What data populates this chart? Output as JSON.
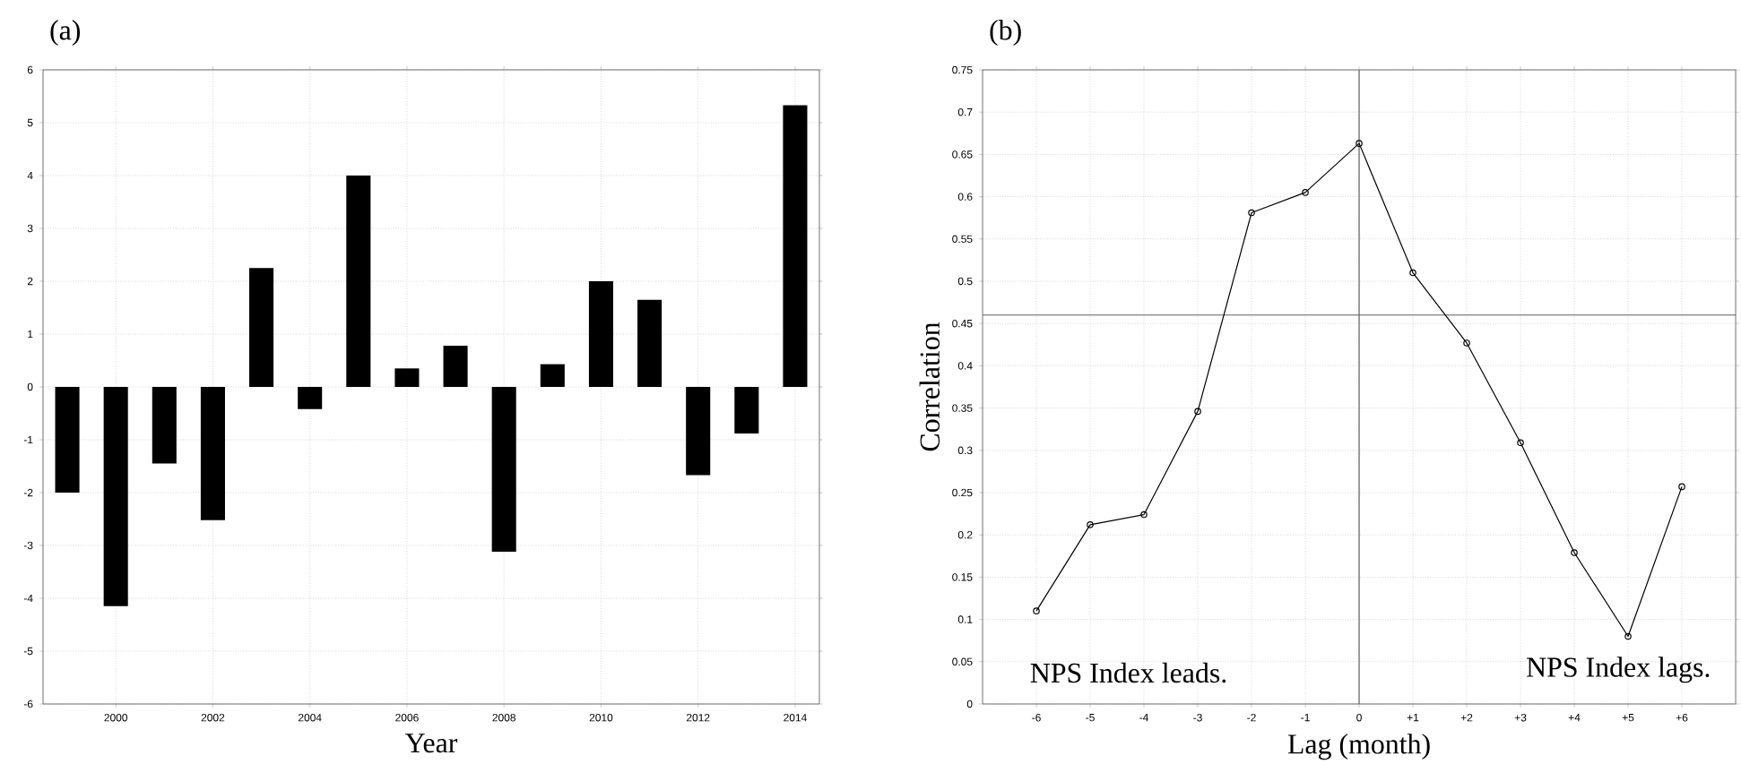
{
  "chart_data": [
    {
      "type": "bar",
      "title": "(a)",
      "xlabel": "Year",
      "x": [
        1999,
        2000,
        2001,
        2002,
        2003,
        2004,
        2005,
        2006,
        2007,
        2008,
        2009,
        2010,
        2011,
        2012,
        2013,
        2014
      ],
      "values": [
        -2.0,
        -4.15,
        -1.45,
        -2.52,
        2.25,
        -0.42,
        4.0,
        0.35,
        0.78,
        -3.12,
        0.43,
        2.0,
        1.65,
        -1.67,
        -0.88,
        5.33
      ],
      "color": "#000000",
      "xlim": [
        1998.5,
        2014.5
      ],
      "ylim": [
        -6,
        6
      ],
      "xticks": [
        2000,
        2002,
        2004,
        2006,
        2008,
        2010,
        2012,
        2014
      ],
      "yticks": [
        -6,
        -5,
        -4,
        -3,
        -2,
        -1,
        0,
        1,
        2,
        3,
        4,
        5,
        6
      ],
      "grid": true
    },
    {
      "type": "line",
      "title": "(b)",
      "xlabel": "Lag (month)",
      "ylabel": "Correlation",
      "x": [
        -6,
        -5,
        -4,
        -3,
        -2,
        -1,
        0,
        1,
        2,
        3,
        4,
        5,
        6
      ],
      "values": [
        0.11,
        0.212,
        0.224,
        0.346,
        0.581,
        0.605,
        0.663,
        0.51,
        0.427,
        0.309,
        0.179,
        0.08,
        0.257
      ],
      "color": "#000000",
      "marker": "circle",
      "line_style": "solid",
      "xlim": [
        -7,
        7
      ],
      "ylim": [
        0,
        0.75
      ],
      "xticks": [
        -6,
        -5,
        -4,
        -3,
        -2,
        -1,
        0,
        {
          "value": 1,
          "label": "+1"
        },
        {
          "value": 2,
          "label": "+2"
        },
        {
          "value": 3,
          "label": "+3"
        },
        {
          "value": 4,
          "label": "+4"
        },
        {
          "value": 5,
          "label": "+5"
        },
        {
          "value": 6,
          "label": "+6"
        }
      ],
      "yticks": [
        0,
        0.05,
        0.1,
        0.15,
        0.2,
        0.25,
        0.3,
        0.35,
        0.4,
        0.45,
        0.5,
        0.55,
        0.6,
        0.65,
        0.7,
        0.75
      ],
      "grid": true,
      "ref_lines": [
        {
          "axis": "x",
          "value": 0,
          "color": "#606060"
        },
        {
          "axis": "y",
          "value": 0.46,
          "color": "#606060"
        }
      ],
      "annotations": [
        "NPS Index leads.",
        "NPS Index lags."
      ]
    }
  ]
}
